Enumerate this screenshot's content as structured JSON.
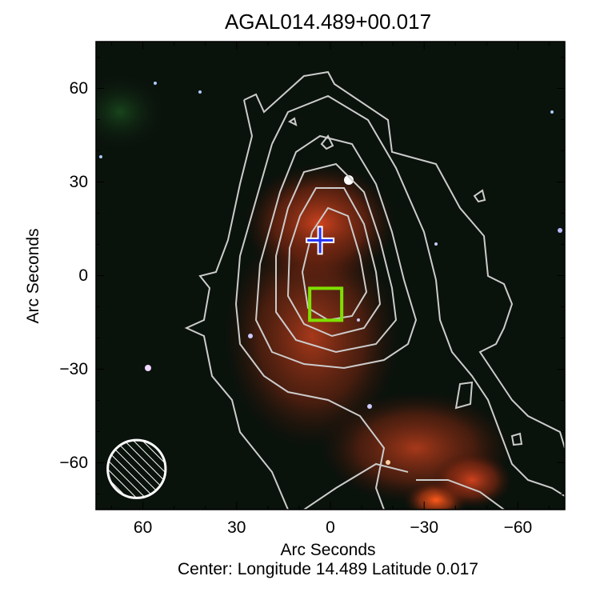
{
  "chart_data": {
    "type": "image",
    "title": "AGAL014.489+00.017",
    "xlabel": "Arc Seconds",
    "ylabel": "Arc Seconds",
    "footer": "Center:  Longitude 14.489 Latitude 0.017",
    "xlim": [
      75,
      -75
    ],
    "ylim": [
      -75,
      75
    ],
    "x_ticks": [
      "60",
      "30",
      "0",
      "−30",
      "−60"
    ],
    "y_ticks": [
      "60",
      "30",
      "0",
      "−30",
      "−60"
    ],
    "x_tick_values": [
      60,
      30,
      0,
      -30,
      -60
    ],
    "y_tick_values": [
      60,
      30,
      0,
      -30,
      -60
    ],
    "markers": [
      {
        "type": "cross",
        "x": 3.3,
        "y": 11.3,
        "color": "#2233ff"
      },
      {
        "type": "square",
        "x": 1.5,
        "y": -9.2,
        "color": "#7ee000"
      }
    ],
    "beam": {
      "x": 62,
      "y": -62,
      "diameter": 18.5,
      "color": "#ffffff"
    },
    "contour_color": "#cccccc",
    "background": "#0a120c",
    "emission_color": "#c8381a"
  }
}
